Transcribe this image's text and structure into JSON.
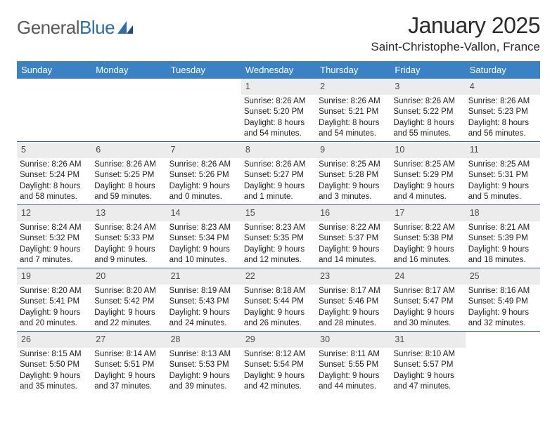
{
  "logo": {
    "word1": "General",
    "word2": "Blue"
  },
  "title": "January 2025",
  "subtitle": "Saint-Christophe-Vallon, France",
  "colors": {
    "header_bg": "#3b82c4",
    "header_fg": "#ffffff",
    "daynum_bg": "#ececec",
    "daynum_fg": "#4a4a4a",
    "rule": "#336699",
    "logo_gray": "#5a5a5a",
    "logo_blue": "#2d6da9"
  },
  "typography": {
    "title_fontsize": 32,
    "subtitle_fontsize": 17,
    "th_fontsize": 13,
    "cell_fontsize": 11.5,
    "daynum_fontsize": 12.5
  },
  "day_headers": [
    "Sunday",
    "Monday",
    "Tuesday",
    "Wednesday",
    "Thursday",
    "Friday",
    "Saturday"
  ],
  "weeks": [
    [
      null,
      null,
      null,
      {
        "n": "1",
        "sr": "8:26 AM",
        "ss": "5:20 PM",
        "dl": "8 hours and 54 minutes."
      },
      {
        "n": "2",
        "sr": "8:26 AM",
        "ss": "5:21 PM",
        "dl": "8 hours and 54 minutes."
      },
      {
        "n": "3",
        "sr": "8:26 AM",
        "ss": "5:22 PM",
        "dl": "8 hours and 55 minutes."
      },
      {
        "n": "4",
        "sr": "8:26 AM",
        "ss": "5:23 PM",
        "dl": "8 hours and 56 minutes."
      }
    ],
    [
      {
        "n": "5",
        "sr": "8:26 AM",
        "ss": "5:24 PM",
        "dl": "8 hours and 58 minutes."
      },
      {
        "n": "6",
        "sr": "8:26 AM",
        "ss": "5:25 PM",
        "dl": "8 hours and 59 minutes."
      },
      {
        "n": "7",
        "sr": "8:26 AM",
        "ss": "5:26 PM",
        "dl": "9 hours and 0 minutes."
      },
      {
        "n": "8",
        "sr": "8:26 AM",
        "ss": "5:27 PM",
        "dl": "9 hours and 1 minute."
      },
      {
        "n": "9",
        "sr": "8:25 AM",
        "ss": "5:28 PM",
        "dl": "9 hours and 3 minutes."
      },
      {
        "n": "10",
        "sr": "8:25 AM",
        "ss": "5:29 PM",
        "dl": "9 hours and 4 minutes."
      },
      {
        "n": "11",
        "sr": "8:25 AM",
        "ss": "5:31 PM",
        "dl": "9 hours and 5 minutes."
      }
    ],
    [
      {
        "n": "12",
        "sr": "8:24 AM",
        "ss": "5:32 PM",
        "dl": "9 hours and 7 minutes."
      },
      {
        "n": "13",
        "sr": "8:24 AM",
        "ss": "5:33 PM",
        "dl": "9 hours and 9 minutes."
      },
      {
        "n": "14",
        "sr": "8:23 AM",
        "ss": "5:34 PM",
        "dl": "9 hours and 10 minutes."
      },
      {
        "n": "15",
        "sr": "8:23 AM",
        "ss": "5:35 PM",
        "dl": "9 hours and 12 minutes."
      },
      {
        "n": "16",
        "sr": "8:22 AM",
        "ss": "5:37 PM",
        "dl": "9 hours and 14 minutes."
      },
      {
        "n": "17",
        "sr": "8:22 AM",
        "ss": "5:38 PM",
        "dl": "9 hours and 16 minutes."
      },
      {
        "n": "18",
        "sr": "8:21 AM",
        "ss": "5:39 PM",
        "dl": "9 hours and 18 minutes."
      }
    ],
    [
      {
        "n": "19",
        "sr": "8:20 AM",
        "ss": "5:41 PM",
        "dl": "9 hours and 20 minutes."
      },
      {
        "n": "20",
        "sr": "8:20 AM",
        "ss": "5:42 PM",
        "dl": "9 hours and 22 minutes."
      },
      {
        "n": "21",
        "sr": "8:19 AM",
        "ss": "5:43 PM",
        "dl": "9 hours and 24 minutes."
      },
      {
        "n": "22",
        "sr": "8:18 AM",
        "ss": "5:44 PM",
        "dl": "9 hours and 26 minutes."
      },
      {
        "n": "23",
        "sr": "8:17 AM",
        "ss": "5:46 PM",
        "dl": "9 hours and 28 minutes."
      },
      {
        "n": "24",
        "sr": "8:17 AM",
        "ss": "5:47 PM",
        "dl": "9 hours and 30 minutes."
      },
      {
        "n": "25",
        "sr": "8:16 AM",
        "ss": "5:49 PM",
        "dl": "9 hours and 32 minutes."
      }
    ],
    [
      {
        "n": "26",
        "sr": "8:15 AM",
        "ss": "5:50 PM",
        "dl": "9 hours and 35 minutes."
      },
      {
        "n": "27",
        "sr": "8:14 AM",
        "ss": "5:51 PM",
        "dl": "9 hours and 37 minutes."
      },
      {
        "n": "28",
        "sr": "8:13 AM",
        "ss": "5:53 PM",
        "dl": "9 hours and 39 minutes."
      },
      {
        "n": "29",
        "sr": "8:12 AM",
        "ss": "5:54 PM",
        "dl": "9 hours and 42 minutes."
      },
      {
        "n": "30",
        "sr": "8:11 AM",
        "ss": "5:55 PM",
        "dl": "9 hours and 44 minutes."
      },
      {
        "n": "31",
        "sr": "8:10 AM",
        "ss": "5:57 PM",
        "dl": "9 hours and 47 minutes."
      },
      null
    ]
  ],
  "labels": {
    "sunrise": "Sunrise:",
    "sunset": "Sunset:",
    "daylight": "Daylight:"
  }
}
